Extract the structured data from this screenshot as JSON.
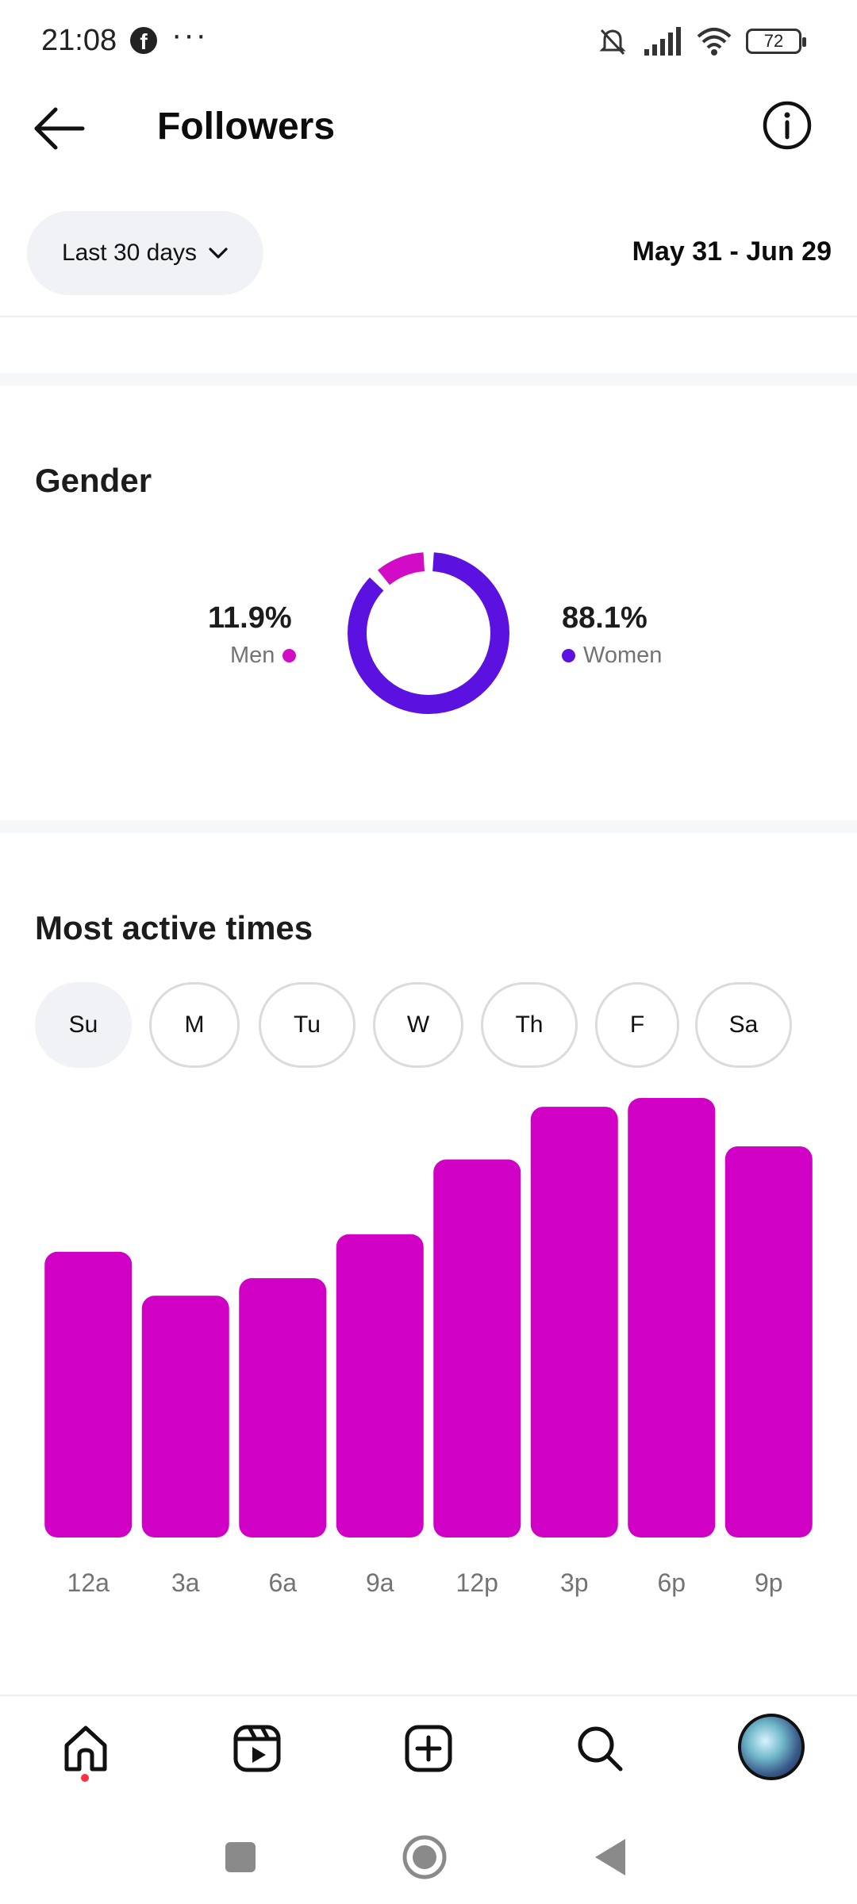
{
  "status_bar": {
    "time": "21:08",
    "battery": "72",
    "icons": [
      "facebook-icon",
      "more-dots-icon",
      "mute-icon",
      "signal-icon",
      "wifi-icon",
      "battery-icon"
    ]
  },
  "header": {
    "title": "Followers",
    "back_icon": "arrow-left-icon",
    "info_icon": "info-icon"
  },
  "filter": {
    "range_label": "Last 30 days",
    "date_range": "May 31 - Jun 29"
  },
  "gender": {
    "title": "Gender",
    "men": {
      "percent": "11.9%",
      "label": "Men",
      "value": 11.9,
      "color": "#d10bc6"
    },
    "women": {
      "percent": "88.1%",
      "label": "Women",
      "value": 88.1,
      "color": "#5b12e0"
    }
  },
  "active_times": {
    "title": "Most active times",
    "days": [
      {
        "label": "Su",
        "selected": true
      },
      {
        "label": "M",
        "selected": false
      },
      {
        "label": "Tu",
        "selected": false
      },
      {
        "label": "W",
        "selected": false
      },
      {
        "label": "Th",
        "selected": false
      },
      {
        "label": "F",
        "selected": false
      },
      {
        "label": "Sa",
        "selected": false
      }
    ]
  },
  "chart_data": {
    "type": "bar",
    "categories": [
      "12a",
      "3a",
      "6a",
      "9a",
      "12p",
      "3p",
      "6p",
      "9p"
    ],
    "values": [
      65,
      55,
      59,
      69,
      86,
      98,
      100,
      89
    ],
    "ylim": [
      0,
      100
    ],
    "color": "#d000c4",
    "grid": false
  },
  "bottom_nav": {
    "items": [
      "home-icon",
      "reels-icon",
      "create-icon",
      "search-icon",
      "profile-avatar"
    ]
  }
}
